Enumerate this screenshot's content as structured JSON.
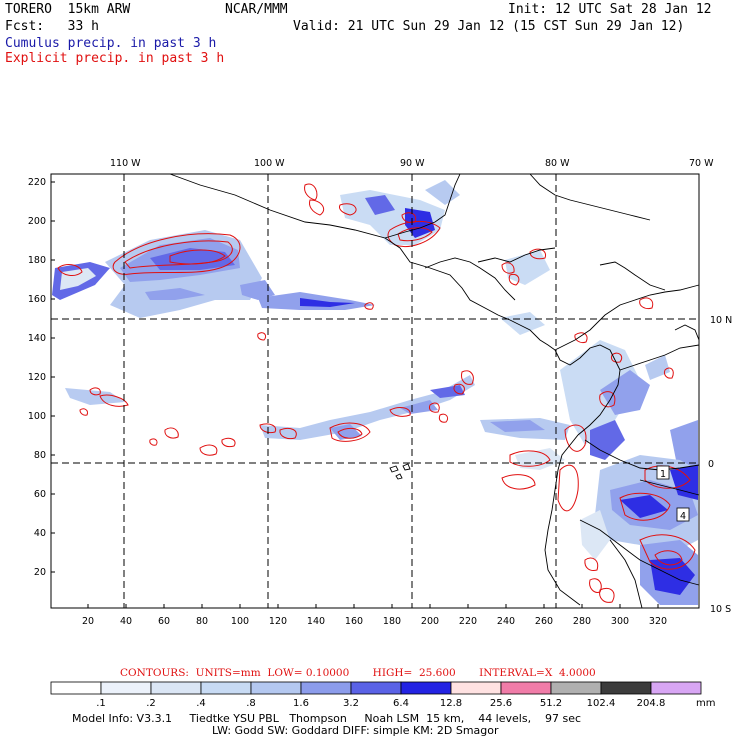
{
  "header": {
    "model": "TORERO  15km ARW",
    "org": "NCAR/MMM",
    "init": "Init: 12 UTC Sat 28 Jan 12",
    "fcst": "Fcst:   33 h",
    "valid": "Valid: 21 UTC Sun 29 Jan 12 (15 CST Sun 29 Jan 12)",
    "cumulus": "Cumulus precip. in past 3 h",
    "explicit": "Explicit precip. in past 3 h"
  },
  "colors": {
    "cumulus_text": "#1a1aa8",
    "explicit_text": "#e01010",
    "contour": "#e01010",
    "grid": "#000000"
  },
  "map": {
    "lon_labels": [
      "110 W",
      "100 W",
      "90 W",
      "80 W",
      "70 W"
    ],
    "lat_labels": [
      "10 N",
      "0",
      "10 S"
    ],
    "y_ticks": [
      "220",
      "200",
      "180",
      "160",
      "140",
      "120",
      "100",
      "80",
      "60",
      "40",
      "20"
    ],
    "x_ticks": [
      "20",
      "40",
      "60",
      "80",
      "100",
      "120",
      "140",
      "160",
      "180",
      "200",
      "220",
      "240",
      "260",
      "280",
      "300",
      "320"
    ],
    "box_labels": [
      "1",
      "4"
    ]
  },
  "contour_info": {
    "text": "CONTOURS:  UNITS=mm  LOW= 0.10000       HIGH=  25.600       INTERVAL=X  4.0000"
  },
  "colorbar": {
    "unit": "mm",
    "labels": [
      ".1",
      ".2",
      ".4",
      ".8",
      "1.6",
      "3.2",
      "6.4",
      "12.8",
      "25.6",
      "51.2",
      "102.4",
      "204.8"
    ],
    "colors": [
      "#ffffff",
      "#ecf2fb",
      "#dbe6f5",
      "#c8dbf4",
      "#b4c8f0",
      "#8c9ceb",
      "#5a62e6",
      "#2323e3",
      "#ffe2e2",
      "#f07ca8",
      "#b0b0b0",
      "#3c3c3c",
      "#d8a6f4"
    ]
  },
  "footer": {
    "line1": "Model Info: V3.3.1     Tiedtke YSU PBL   Thompson     Noah LSM  15 km,    44 levels,    97 sec",
    "line2": "LW: Godd SW: Goddard DIFF: simple KM: 2D Smagor"
  }
}
